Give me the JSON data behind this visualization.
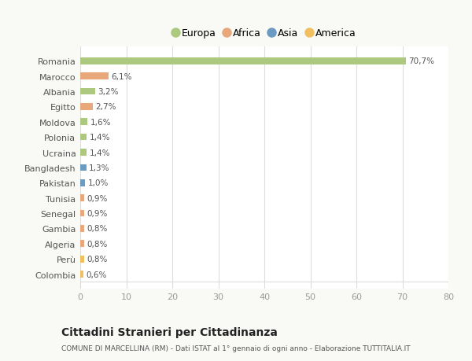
{
  "countries": [
    "Romania",
    "Marocco",
    "Albania",
    "Egitto",
    "Moldova",
    "Polonia",
    "Ucraina",
    "Bangladesh",
    "Pakistan",
    "Tunisia",
    "Senegal",
    "Gambia",
    "Algeria",
    "Perù",
    "Colombia"
  ],
  "values": [
    70.7,
    6.1,
    3.2,
    2.7,
    1.6,
    1.4,
    1.4,
    1.3,
    1.0,
    0.9,
    0.9,
    0.8,
    0.8,
    0.8,
    0.6
  ],
  "labels": [
    "70,7%",
    "6,1%",
    "3,2%",
    "2,7%",
    "1,6%",
    "1,4%",
    "1,4%",
    "1,3%",
    "1,0%",
    "0,9%",
    "0,9%",
    "0,8%",
    "0,8%",
    "0,8%",
    "0,6%"
  ],
  "continents": [
    "Europa",
    "Africa",
    "Europa",
    "Africa",
    "Europa",
    "Europa",
    "Europa",
    "Asia",
    "Asia",
    "Africa",
    "Africa",
    "Africa",
    "Africa",
    "America",
    "America"
  ],
  "continent_colors": {
    "Europa": "#adc97f",
    "Africa": "#e8a87c",
    "Asia": "#6b9bc3",
    "America": "#f0c060"
  },
  "legend_order": [
    "Europa",
    "Africa",
    "Asia",
    "America"
  ],
  "title": "Cittadini Stranieri per Cittadinanza",
  "subtitle": "COMUNE DI MARCELLINA (RM) - Dati ISTAT al 1° gennaio di ogni anno - Elaborazione TUTTITALIA.IT",
  "xlim": [
    0,
    80
  ],
  "xticks": [
    0,
    10,
    20,
    30,
    40,
    50,
    60,
    70,
    80
  ],
  "plot_bg": "#ffffff",
  "fig_bg": "#f9f9f6",
  "grid_color": "#dddddd",
  "label_color": "#555555",
  "tick_color": "#999999"
}
